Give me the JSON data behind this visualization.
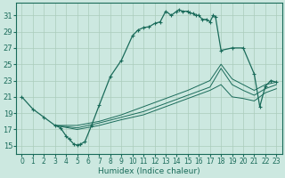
{
  "xlabel": "Humidex (Indice chaleur)",
  "xlim": [
    -0.5,
    23.5
  ],
  "ylim": [
    14.0,
    32.5
  ],
  "xticks": [
    0,
    1,
    2,
    3,
    4,
    5,
    6,
    7,
    8,
    9,
    10,
    11,
    12,
    13,
    14,
    15,
    16,
    17,
    18,
    19,
    20,
    21,
    22,
    23
  ],
  "yticks": [
    15,
    17,
    19,
    21,
    23,
    25,
    27,
    29,
    31
  ],
  "bg_color": "#cce8e0",
  "grid_color": "#aaccbb",
  "line_color": "#1a6b5a",
  "line1_x": [
    0,
    1,
    2,
    3,
    3.5,
    4,
    4.3,
    4.7,
    5.0,
    5.3,
    5.7,
    6.3,
    7,
    8,
    9,
    10,
    10.5,
    11,
    11.5,
    12,
    12.5,
    13,
    13.5,
    14,
    14.2,
    14.5,
    15,
    15.2,
    15.5,
    15.7,
    16,
    16.3,
    16.7,
    17,
    17.3,
    17.5,
    18,
    19,
    20,
    21,
    21.5,
    22,
    22.5,
    23
  ],
  "line1_y": [
    21,
    19.5,
    18.5,
    17.5,
    17.2,
    16.2,
    15.8,
    15.2,
    15.1,
    15.2,
    15.5,
    17.5,
    20.0,
    23.5,
    25.5,
    28.5,
    29.2,
    29.5,
    29.6,
    30.0,
    30.2,
    31.5,
    31.0,
    31.5,
    31.7,
    31.5,
    31.5,
    31.3,
    31.2,
    31.0,
    31.0,
    30.5,
    30.5,
    30.2,
    31.0,
    30.8,
    26.7,
    27.0,
    27.0,
    23.8,
    19.8,
    22.3,
    23.0,
    22.8
  ],
  "line2_x": [
    3,
    5,
    7,
    9,
    11,
    13,
    15,
    17,
    18,
    19,
    20,
    21,
    22,
    23
  ],
  "line2_y": [
    17.5,
    17.5,
    18.0,
    18.8,
    19.8,
    20.8,
    21.8,
    23.0,
    25.0,
    23.2,
    22.5,
    21.8,
    22.5,
    22.8
  ],
  "line3_x": [
    3,
    5,
    7,
    9,
    11,
    13,
    15,
    17,
    18,
    19,
    20,
    21,
    22,
    23
  ],
  "line3_y": [
    17.5,
    17.2,
    17.8,
    18.5,
    19.2,
    20.2,
    21.2,
    22.2,
    24.5,
    22.5,
    21.8,
    21.2,
    22.0,
    22.5
  ],
  "line4_x": [
    3,
    5,
    7,
    9,
    11,
    13,
    15,
    17,
    18,
    19,
    20,
    21,
    22,
    23
  ],
  "line4_y": [
    17.5,
    17.0,
    17.5,
    18.2,
    18.8,
    19.8,
    20.8,
    21.8,
    22.5,
    21.0,
    20.8,
    20.5,
    21.5,
    22.0
  ]
}
